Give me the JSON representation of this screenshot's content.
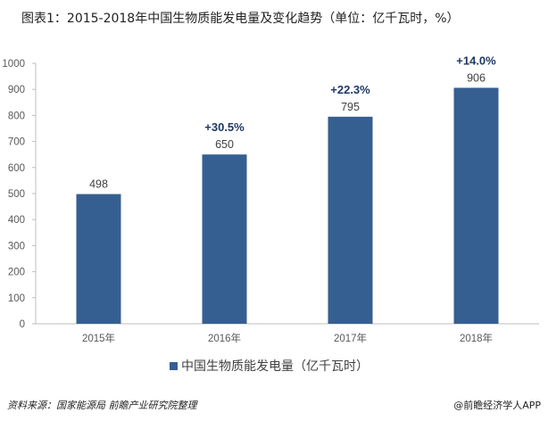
{
  "title": "图表1：2015-2018年中国生物质能发电量及变化趋势（单位：亿千瓦时，%）",
  "chart_data": {
    "type": "bar",
    "categories": [
      "2015年",
      "2016年",
      "2017年",
      "2018年"
    ],
    "series": [
      {
        "name": "中国生物质能发电量（亿千瓦时）",
        "values": [
          498,
          650,
          795,
          906
        ],
        "color": "#365f91"
      }
    ],
    "growth_labels": [
      "",
      "+30.5%",
      "+22.3%",
      "+14.0%"
    ],
    "ylim": [
      0,
      1000
    ],
    "yticks": [
      0,
      100,
      200,
      300,
      400,
      500,
      600,
      700,
      800,
      900,
      1000
    ],
    "grid": false,
    "legend_position": "bottom"
  },
  "legend": {
    "label": "中国生物质能发电量（亿千瓦时）"
  },
  "source": "资料来源：国家能源局 前瞻产业研究院整理",
  "credit": "@前瞻经济学人APP"
}
